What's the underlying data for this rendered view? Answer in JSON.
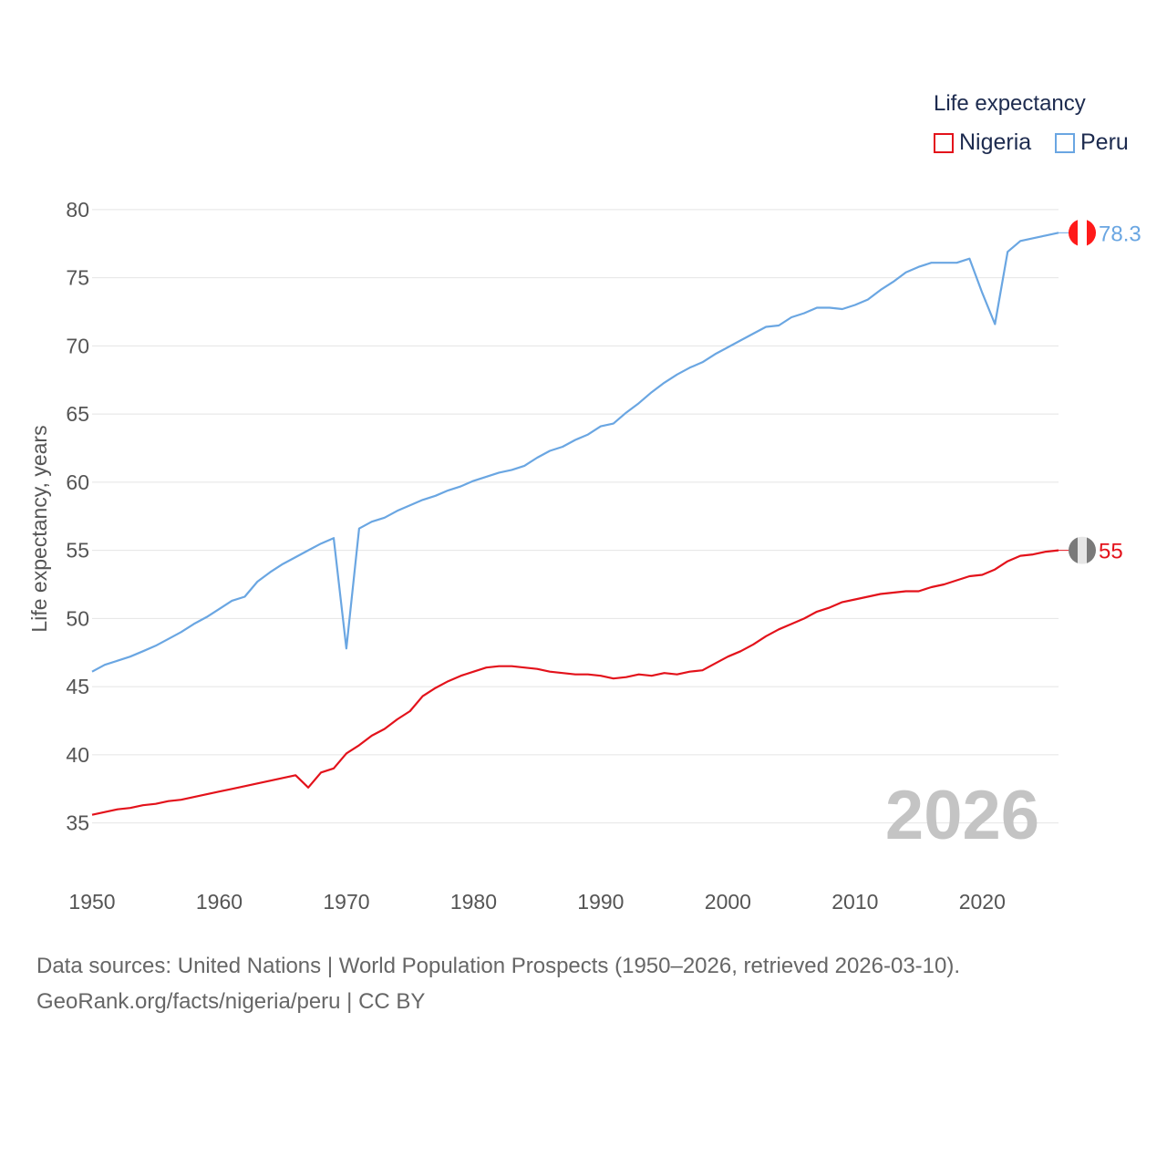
{
  "legend": {
    "title": "Life expectancy",
    "items": [
      {
        "name": "Nigeria",
        "color": "#e3121b"
      },
      {
        "name": "Peru",
        "color": "#6aa6e2"
      }
    ]
  },
  "footer": {
    "line1": "Data sources: United Nations | World Population Prospects (1950–2026, retrieved 2026-03-10).",
    "line2": "GeoRank.org/facts/nigeria/peru | CC BY"
  },
  "chart_data": {
    "type": "line",
    "title": "Life expectancy",
    "xlabel": "",
    "ylabel": "Life expectancy, years",
    "xlim": [
      1950,
      2026
    ],
    "ylim": [
      32.5,
      82
    ],
    "xticks": [
      1950,
      1960,
      1970,
      1980,
      1990,
      2000,
      2010,
      2020
    ],
    "yticks": [
      35,
      40,
      45,
      50,
      55,
      60,
      65,
      70,
      75,
      80
    ],
    "grid": true,
    "year_watermark": "2026",
    "x": [
      1950,
      1951,
      1952,
      1953,
      1954,
      1955,
      1956,
      1957,
      1958,
      1959,
      1960,
      1961,
      1962,
      1963,
      1964,
      1965,
      1966,
      1967,
      1968,
      1969,
      1970,
      1971,
      1972,
      1973,
      1974,
      1975,
      1976,
      1977,
      1978,
      1979,
      1980,
      1981,
      1982,
      1983,
      1984,
      1985,
      1986,
      1987,
      1988,
      1989,
      1990,
      1991,
      1992,
      1993,
      1994,
      1995,
      1996,
      1997,
      1998,
      1999,
      2000,
      2001,
      2002,
      2003,
      2004,
      2005,
      2006,
      2007,
      2008,
      2009,
      2010,
      2011,
      2012,
      2013,
      2014,
      2015,
      2016,
      2017,
      2018,
      2019,
      2020,
      2021,
      2022,
      2023,
      2024,
      2025,
      2026
    ],
    "series": [
      {
        "name": "Nigeria",
        "color": "#e3121b",
        "end_label": "55",
        "flag": "nigeria-flag-icon",
        "values": [
          35.6,
          35.8,
          36.0,
          36.1,
          36.3,
          36.4,
          36.6,
          36.7,
          36.9,
          37.1,
          37.3,
          37.5,
          37.7,
          37.9,
          38.1,
          38.3,
          38.5,
          37.6,
          38.7,
          39.0,
          40.1,
          40.7,
          41.4,
          41.9,
          42.6,
          43.2,
          44.3,
          44.9,
          45.4,
          45.8,
          46.1,
          46.4,
          46.5,
          46.5,
          46.4,
          46.3,
          46.1,
          46.0,
          45.9,
          45.9,
          45.8,
          45.6,
          45.7,
          45.9,
          45.8,
          46.0,
          45.9,
          46.1,
          46.2,
          46.7,
          47.2,
          47.6,
          48.1,
          48.7,
          49.2,
          49.6,
          50.0,
          50.5,
          50.8,
          51.2,
          51.4,
          51.6,
          51.8,
          51.9,
          52.0,
          52.0,
          52.3,
          52.5,
          52.8,
          53.1,
          53.2,
          53.6,
          54.2,
          54.6,
          54.7,
          54.9,
          55.0
        ]
      },
      {
        "name": "Peru",
        "color": "#6aa6e2",
        "end_label": "78.3",
        "flag": "peru-flag-icon",
        "values": [
          46.1,
          46.6,
          46.9,
          47.2,
          47.6,
          48.0,
          48.5,
          49.0,
          49.6,
          50.1,
          50.7,
          51.3,
          51.6,
          52.7,
          53.4,
          54.0,
          54.5,
          55.0,
          55.5,
          55.9,
          47.8,
          56.6,
          57.1,
          57.4,
          57.9,
          58.3,
          58.7,
          59.0,
          59.4,
          59.7,
          60.1,
          60.4,
          60.7,
          60.9,
          61.2,
          61.8,
          62.3,
          62.6,
          63.1,
          63.5,
          64.1,
          64.3,
          65.1,
          65.8,
          66.6,
          67.3,
          67.9,
          68.4,
          68.8,
          69.4,
          69.9,
          70.4,
          70.9,
          71.4,
          71.5,
          72.1,
          72.4,
          72.8,
          72.8,
          72.7,
          73.0,
          73.4,
          74.1,
          74.7,
          75.4,
          75.8,
          76.1,
          76.1,
          76.1,
          76.4,
          73.9,
          71.6,
          76.9,
          77.7,
          77.9,
          78.1,
          78.3
        ]
      }
    ]
  }
}
